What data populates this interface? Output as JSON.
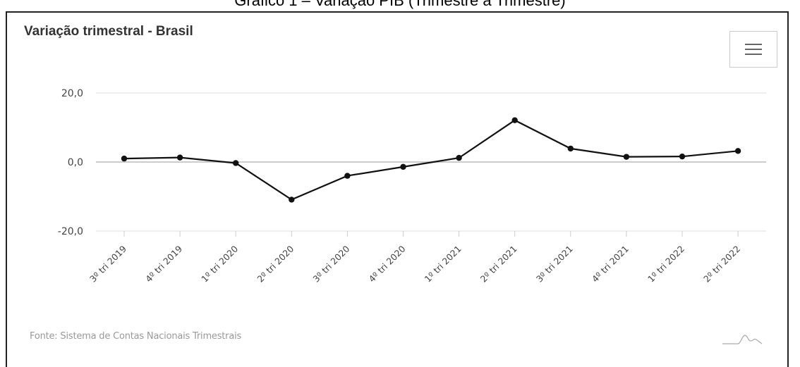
{
  "caption": "Gráfico 1 – Variação PIB (Trimestre a Trimestre)",
  "chart": {
    "title": "Variação trimestral - Brasil",
    "source": "Fonte: Sistema de Contas Nacionais Trimestrais",
    "menu_icon": "hamburger-menu-icon",
    "logo_icon": "mountain-logo-icon"
  },
  "chart_data": {
    "type": "line",
    "title": "Variação trimestral - Brasil",
    "xlabel": "",
    "ylabel": "",
    "categories": [
      "3º tri 2019",
      "4º tri 2019",
      "1º tri 2020",
      "2º tri 2020",
      "3º tri 2020",
      "4º tri 2020",
      "1º tri 2021",
      "2º tri 2021",
      "3º tri 2021",
      "4º tri 2021",
      "1º tri 2022",
      "2º tri 2022"
    ],
    "series": [
      {
        "values": [
          1.0,
          1.3,
          -0.3,
          -10.9,
          -4.0,
          -1.4,
          1.2,
          12.1,
          3.9,
          1.5,
          1.6,
          3.2
        ]
      }
    ],
    "yticks": [
      "20,0",
      "0,0",
      "-20,0"
    ],
    "ytick_values": [
      20,
      0,
      -20
    ],
    "ylim": [
      -20,
      20
    ],
    "grid": true,
    "legend": "none",
    "line_color": "#111111",
    "grid_color": "#dddddd"
  }
}
